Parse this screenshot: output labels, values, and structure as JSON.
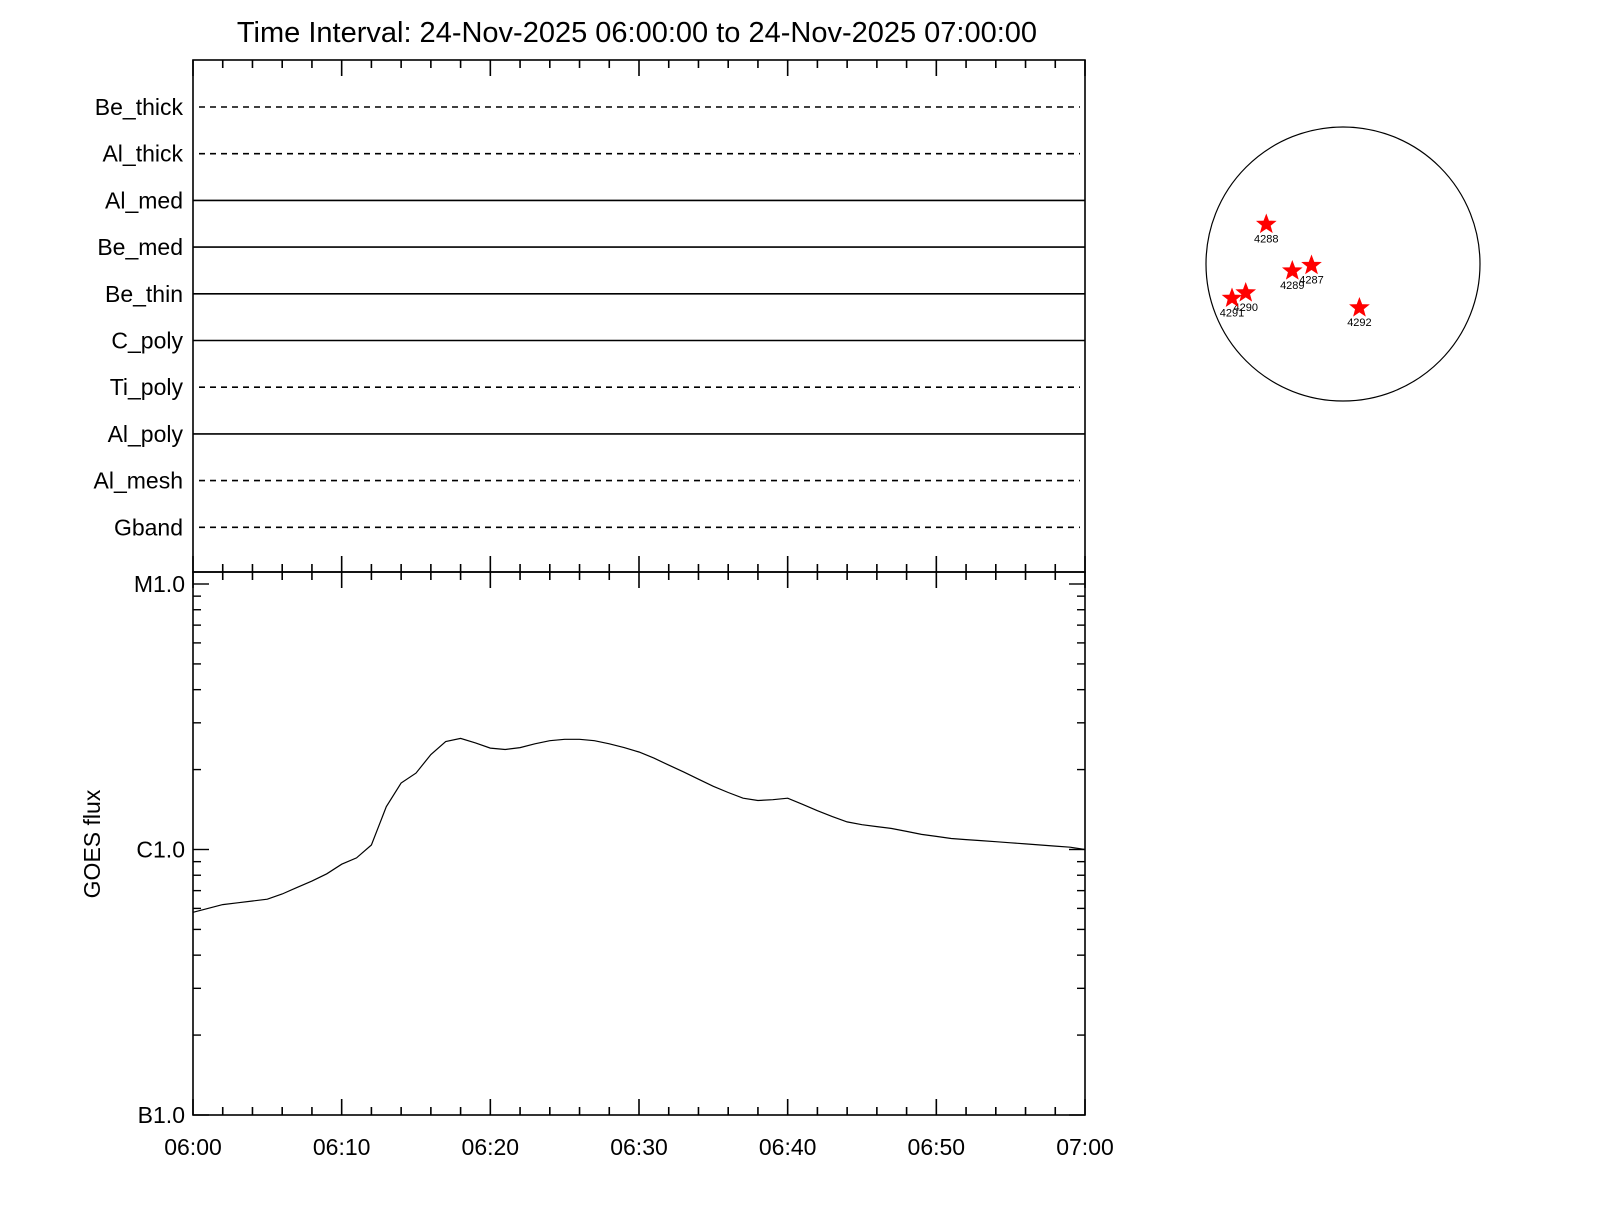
{
  "title": "Time Interval: 24-Nov-2025 06:00:00 to 24-Nov-2025 07:00:00",
  "filter_panel": {
    "filters": [
      {
        "name": "Be_thick",
        "style": "dashed"
      },
      {
        "name": "Al_thick",
        "style": "dashed"
      },
      {
        "name": "Al_med",
        "style": "solid"
      },
      {
        "name": "Be_med",
        "style": "solid"
      },
      {
        "name": "Be_thin",
        "style": "solid"
      },
      {
        "name": "C_poly",
        "style": "solid"
      },
      {
        "name": "Ti_poly",
        "style": "dashed"
      },
      {
        "name": "Al_poly",
        "style": "solid"
      },
      {
        "name": "Al_mesh",
        "style": "dashed"
      },
      {
        "name": "Gband",
        "style": "dashed"
      }
    ]
  },
  "chart_data": {
    "type": "line",
    "ylabel": "GOES flux",
    "yscale": "log",
    "ylim": [
      1e-07,
      1e-05
    ],
    "yticks": [
      {
        "label": "B1.0",
        "value": 1e-07
      },
      {
        "label": "C1.0",
        "value": 1e-06
      },
      {
        "label": "M1.0",
        "value": 1e-05
      }
    ],
    "xlim": [
      "06:00",
      "07:00"
    ],
    "xticks": [
      "06:00",
      "06:10",
      "06:20",
      "06:30",
      "06:40",
      "06:50",
      "07:00"
    ],
    "series": [
      {
        "x": [
          "06:00",
          "06:01",
          "06:02",
          "06:03",
          "06:04",
          "06:05",
          "06:06",
          "06:07",
          "06:08",
          "06:09",
          "06:10",
          "06:11",
          "06:12",
          "06:13",
          "06:14",
          "06:15",
          "06:16",
          "06:17",
          "06:18",
          "06:19",
          "06:20",
          "06:21",
          "06:22",
          "06:23",
          "06:24",
          "06:25",
          "06:26",
          "06:27",
          "06:28",
          "06:29",
          "06:30",
          "06:31",
          "06:32",
          "06:33",
          "06:34",
          "06:35",
          "06:36",
          "06:37",
          "06:38",
          "06:39",
          "06:40",
          "06:41",
          "06:42",
          "06:43",
          "06:44",
          "06:45",
          "06:46",
          "06:47",
          "06:48",
          "06:49",
          "06:50",
          "06:51",
          "06:52",
          "06:53",
          "06:54",
          "06:55",
          "06:56",
          "06:57",
          "06:58",
          "06:59",
          "07:00"
        ],
        "values": [
          5.8e-07,
          6e-07,
          6.2e-07,
          6.3e-07,
          6.4e-07,
          6.5e-07,
          6.8e-07,
          7.2e-07,
          7.6e-07,
          8.1e-07,
          8.8e-07,
          9.3e-07,
          1.04e-06,
          1.45e-06,
          1.78e-06,
          1.94e-06,
          2.28e-06,
          2.55e-06,
          2.62e-06,
          2.52e-06,
          2.41e-06,
          2.38e-06,
          2.42e-06,
          2.5e-06,
          2.57e-06,
          2.6e-06,
          2.6e-06,
          2.57e-06,
          2.5e-06,
          2.42e-06,
          2.33e-06,
          2.21e-06,
          2.08e-06,
          1.96e-06,
          1.84e-06,
          1.73e-06,
          1.64e-06,
          1.56e-06,
          1.53e-06,
          1.54e-06,
          1.56e-06,
          1.48e-06,
          1.4e-06,
          1.33e-06,
          1.27e-06,
          1.24e-06,
          1.22e-06,
          1.2e-06,
          1.17e-06,
          1.14e-06,
          1.12e-06,
          1.1e-06,
          1.09e-06,
          1.08e-06,
          1.07e-06,
          1.06e-06,
          1.05e-06,
          1.04e-06,
          1.03e-06,
          1.02e-06,
          1e-06
        ]
      }
    ]
  },
  "solar_disk": {
    "marker_color": "#ff0000",
    "regions": [
      {
        "label": "4288",
        "x": -0.56,
        "y": 0.29
      },
      {
        "label": "4287",
        "x": -0.23,
        "y": -0.01
      },
      {
        "label": "4289",
        "x": -0.37,
        "y": -0.05
      },
      {
        "label": "4290",
        "x": -0.71,
        "y": -0.21
      },
      {
        "label": "4291",
        "x": -0.81,
        "y": -0.25
      },
      {
        "label": "4292",
        "x": 0.12,
        "y": -0.32
      }
    ]
  }
}
